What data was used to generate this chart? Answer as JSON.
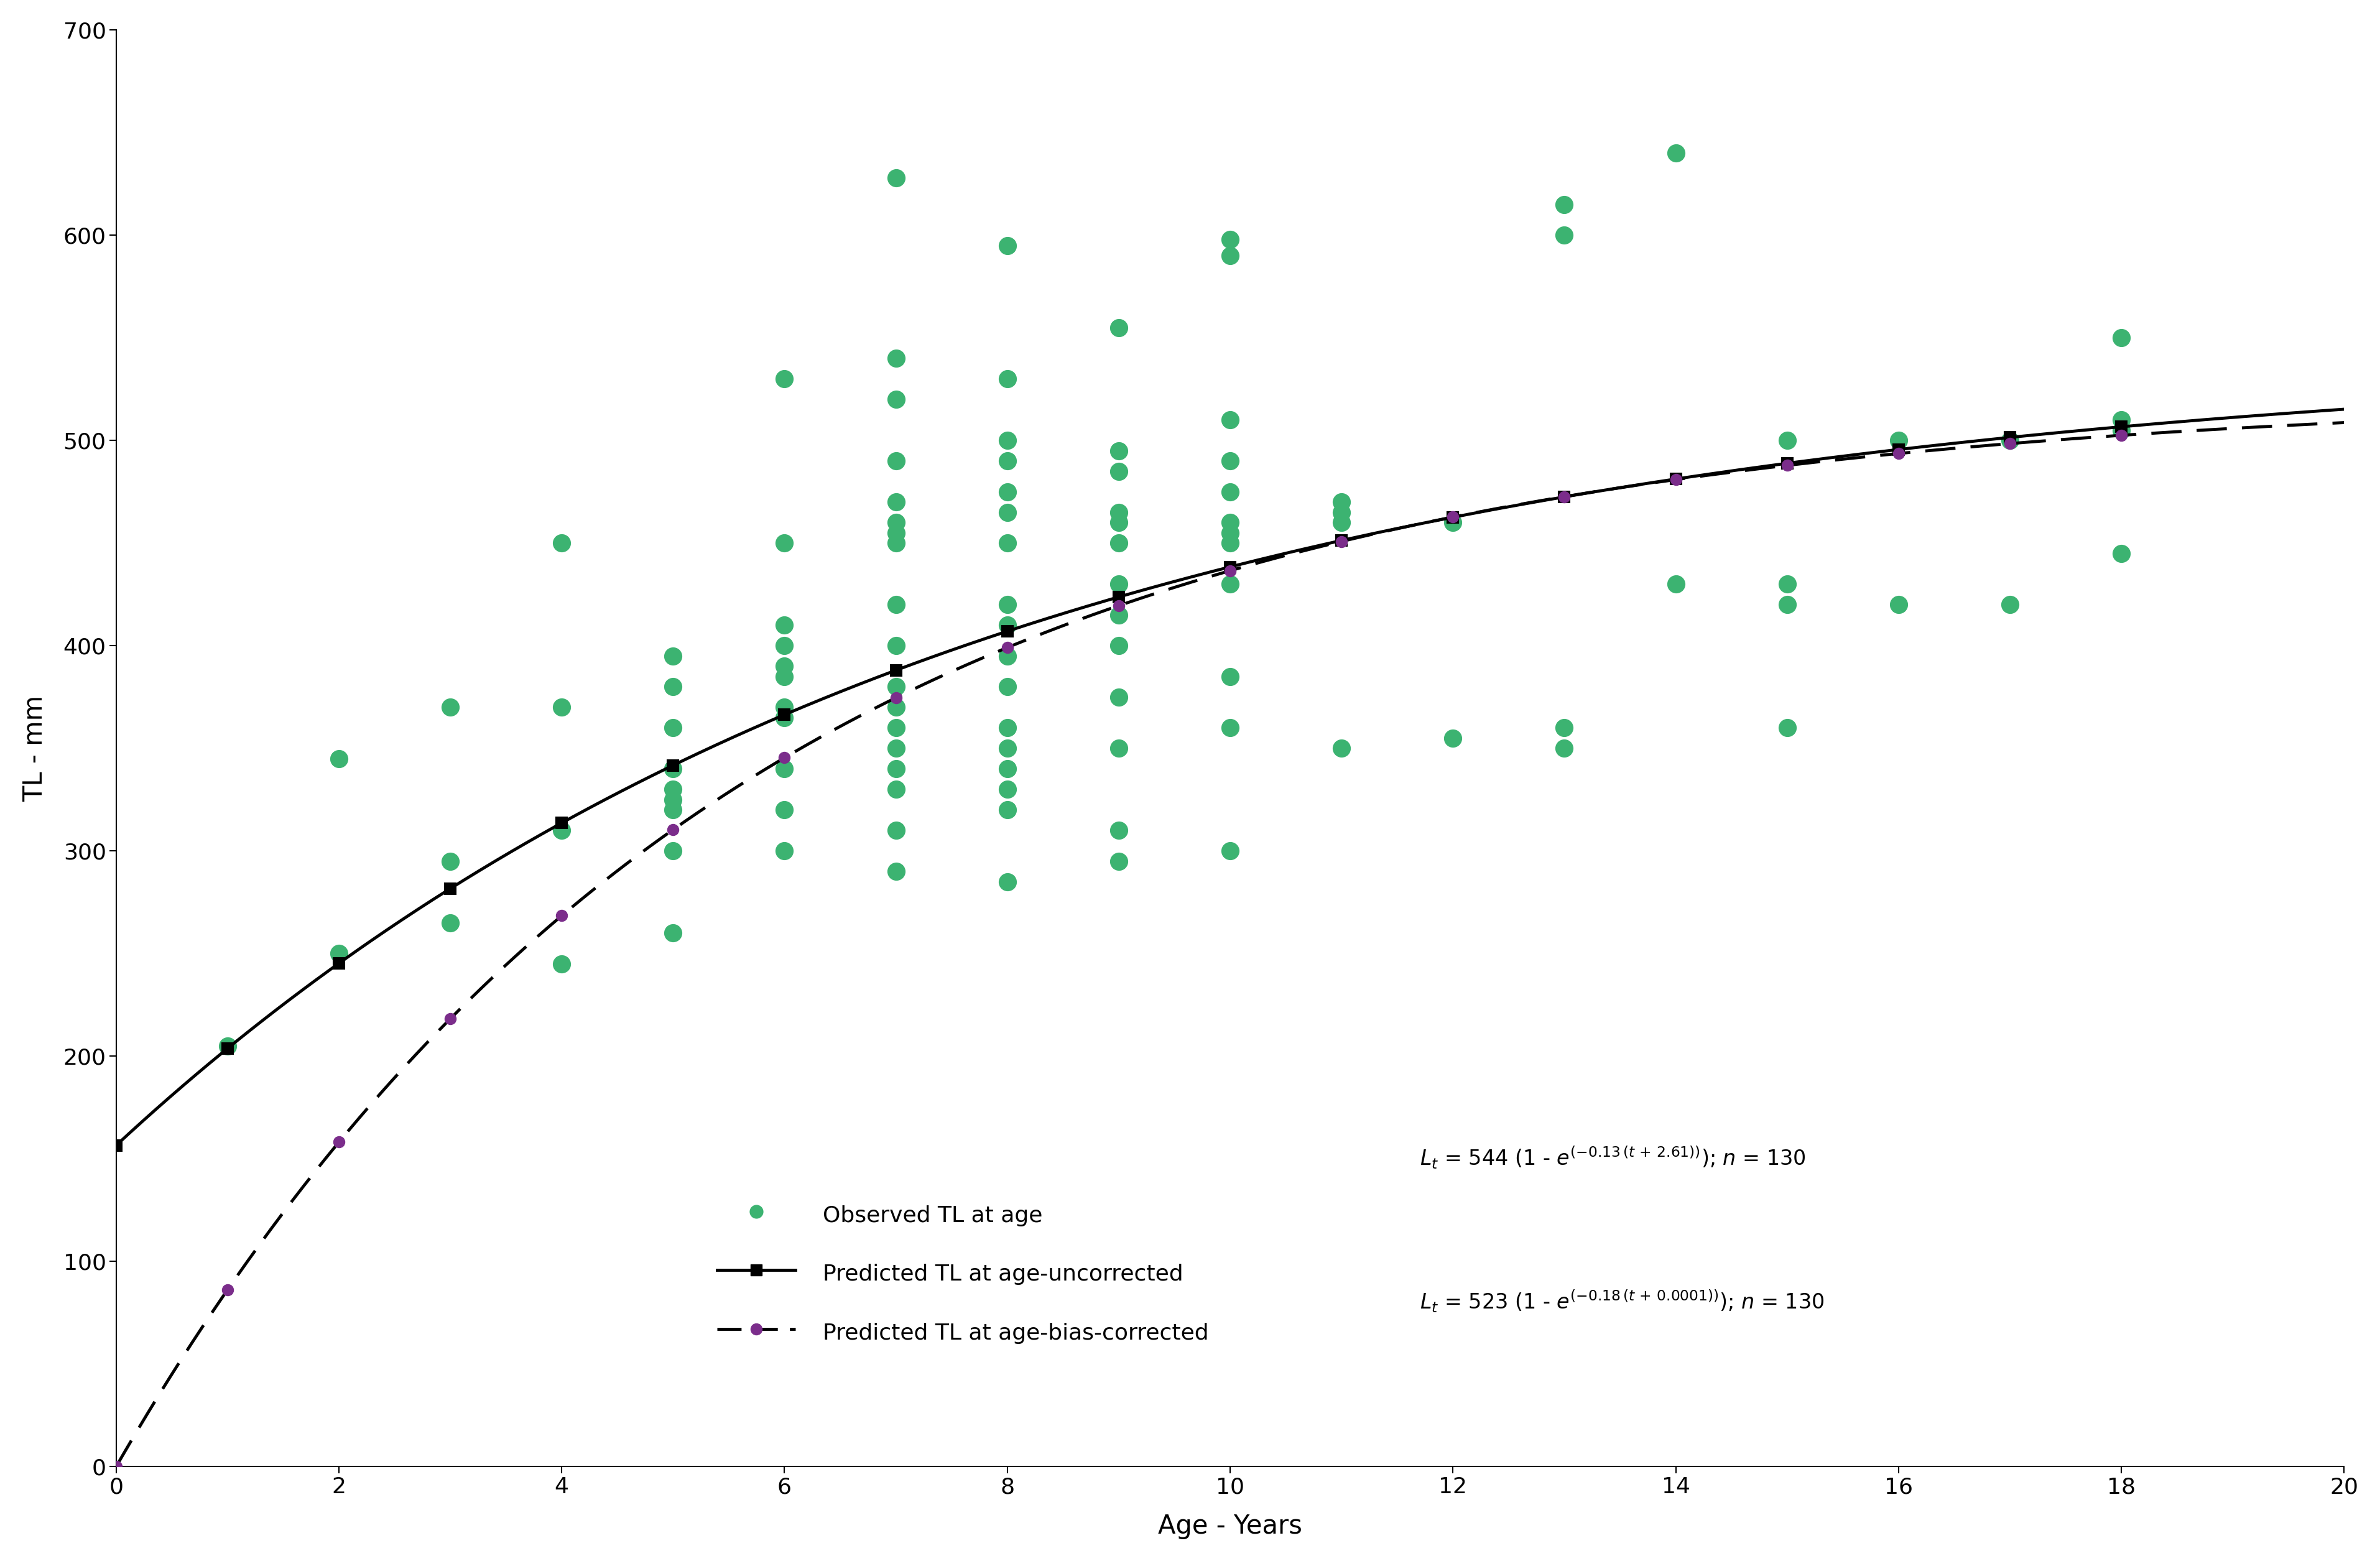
{
  "xlabel": "Age - Years",
  "ylabel": "TL - mm",
  "xlim": [
    0,
    20
  ],
  "ylim": [
    0,
    700
  ],
  "xticks": [
    0,
    2,
    4,
    6,
    8,
    10,
    12,
    14,
    16,
    18,
    20
  ],
  "yticks": [
    0,
    100,
    200,
    300,
    400,
    500,
    600,
    700
  ],
  "background_color": "#ffffff",
  "vbgf_uncorrected": {
    "Linf": 544,
    "K": 0.13,
    "t0_add": 2.61,
    "label": "Predicted TL at age-uncorrected",
    "color": "#000000",
    "linewidth": 3.5,
    "marker": "s",
    "markersize": 13,
    "markerfacecolor": "#000000",
    "ages": [
      0,
      1,
      2,
      3,
      4,
      5,
      6,
      7,
      8,
      9,
      10,
      11,
      12,
      13,
      14,
      15,
      16,
      17,
      18
    ]
  },
  "vbgf_corrected": {
    "Linf": 523,
    "K": 0.18,
    "t0_add": 0.0001,
    "label": "Predicted TL at age-bias-corrected",
    "color": "#000000",
    "linewidth": 3.5,
    "marker": "o",
    "markersize": 13,
    "markerfacecolor": "#7B2D8B",
    "ages": [
      0,
      1,
      2,
      3,
      4,
      5,
      6,
      7,
      8,
      9,
      10,
      11,
      12,
      13,
      14,
      15,
      16,
      17,
      18
    ]
  },
  "observed_color": "#3CB371",
  "observed_label": "Observed TL at age",
  "observed_markersize": 20,
  "green_points": [
    [
      1,
      205
    ],
    [
      2,
      250
    ],
    [
      2,
      345
    ],
    [
      3,
      265
    ],
    [
      3,
      295
    ],
    [
      3,
      370
    ],
    [
      4,
      245
    ],
    [
      4,
      310
    ],
    [
      4,
      370
    ],
    [
      4,
      450
    ],
    [
      5,
      260
    ],
    [
      5,
      300
    ],
    [
      5,
      320
    ],
    [
      5,
      325
    ],
    [
      5,
      330
    ],
    [
      5,
      340
    ],
    [
      5,
      360
    ],
    [
      5,
      380
    ],
    [
      5,
      395
    ],
    [
      6,
      300
    ],
    [
      6,
      320
    ],
    [
      6,
      340
    ],
    [
      6,
      365
    ],
    [
      6,
      370
    ],
    [
      6,
      385
    ],
    [
      6,
      390
    ],
    [
      6,
      400
    ],
    [
      6,
      410
    ],
    [
      6,
      450
    ],
    [
      6,
      530
    ],
    [
      7,
      290
    ],
    [
      7,
      310
    ],
    [
      7,
      330
    ],
    [
      7,
      340
    ],
    [
      7,
      350
    ],
    [
      7,
      360
    ],
    [
      7,
      370
    ],
    [
      7,
      380
    ],
    [
      7,
      400
    ],
    [
      7,
      420
    ],
    [
      7,
      450
    ],
    [
      7,
      455
    ],
    [
      7,
      460
    ],
    [
      7,
      470
    ],
    [
      7,
      490
    ],
    [
      7,
      520
    ],
    [
      7,
      540
    ],
    [
      7,
      628
    ],
    [
      8,
      285
    ],
    [
      8,
      320
    ],
    [
      8,
      330
    ],
    [
      8,
      340
    ],
    [
      8,
      350
    ],
    [
      8,
      360
    ],
    [
      8,
      380
    ],
    [
      8,
      395
    ],
    [
      8,
      410
    ],
    [
      8,
      420
    ],
    [
      8,
      450
    ],
    [
      8,
      465
    ],
    [
      8,
      475
    ],
    [
      8,
      490
    ],
    [
      8,
      500
    ],
    [
      8,
      530
    ],
    [
      8,
      595
    ],
    [
      9,
      295
    ],
    [
      9,
      310
    ],
    [
      9,
      350
    ],
    [
      9,
      375
    ],
    [
      9,
      400
    ],
    [
      9,
      415
    ],
    [
      9,
      430
    ],
    [
      9,
      450
    ],
    [
      9,
      460
    ],
    [
      9,
      465
    ],
    [
      9,
      485
    ],
    [
      9,
      495
    ],
    [
      9,
      555
    ],
    [
      10,
      300
    ],
    [
      10,
      360
    ],
    [
      10,
      385
    ],
    [
      10,
      430
    ],
    [
      10,
      450
    ],
    [
      10,
      455
    ],
    [
      10,
      460
    ],
    [
      10,
      475
    ],
    [
      10,
      490
    ],
    [
      10,
      510
    ],
    [
      10,
      590
    ],
    [
      10,
      598
    ],
    [
      11,
      350
    ],
    [
      11,
      460
    ],
    [
      11,
      465
    ],
    [
      11,
      470
    ],
    [
      12,
      355
    ],
    [
      12,
      460
    ],
    [
      13,
      350
    ],
    [
      13,
      360
    ],
    [
      13,
      600
    ],
    [
      13,
      615
    ],
    [
      14,
      430
    ],
    [
      14,
      640
    ],
    [
      15,
      360
    ],
    [
      15,
      420
    ],
    [
      15,
      430
    ],
    [
      15,
      500
    ],
    [
      16,
      420
    ],
    [
      16,
      500
    ],
    [
      17,
      420
    ],
    [
      17,
      500
    ],
    [
      18,
      445
    ],
    [
      18,
      505
    ],
    [
      18,
      510
    ],
    [
      18,
      550
    ]
  ],
  "legend_fontsize": 26,
  "axis_label_fontsize": 30,
  "tick_fontsize": 26,
  "equation_fontsize": 24
}
